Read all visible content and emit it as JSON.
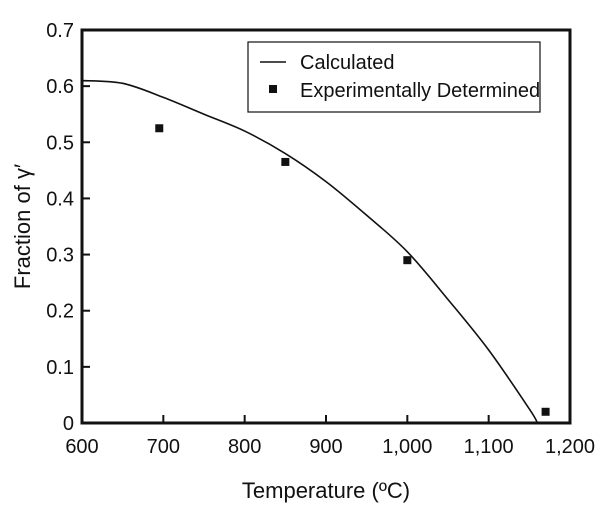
{
  "chart_data": {
    "type": "line",
    "title": "",
    "xlabel": "Temperature (ºC)",
    "ylabel": "Fraction of γ′",
    "xlim": [
      600,
      1200
    ],
    "ylim": [
      0,
      0.7
    ],
    "x_ticks": [
      600,
      700,
      800,
      900,
      1000,
      1100,
      1200
    ],
    "x_tick_labels": [
      "600",
      "700",
      "800",
      "900",
      "1,000",
      "1,100",
      "1,200"
    ],
    "y_ticks": [
      0,
      0.1,
      0.2,
      0.3,
      0.4,
      0.5,
      0.6,
      0.7
    ],
    "y_tick_labels": [
      "0",
      "0.1",
      "0.2",
      "0.3",
      "0.4",
      "0.5",
      "0.6",
      "0.7"
    ],
    "grid": false,
    "legend_position": "top-right",
    "series": [
      {
        "name": "Calculated",
        "style": "line",
        "x": [
          600,
          650,
          700,
          750,
          800,
          850,
          900,
          950,
          1000,
          1050,
          1100,
          1150,
          1160
        ],
        "y": [
          0.61,
          0.605,
          0.58,
          0.55,
          0.52,
          0.48,
          0.43,
          0.37,
          0.305,
          0.22,
          0.13,
          0.025,
          0.0
        ]
      },
      {
        "name": "Experimentally Determined",
        "style": "marker",
        "x": [
          695,
          850,
          1000,
          1170
        ],
        "y": [
          0.525,
          0.465,
          0.29,
          0.02
        ]
      }
    ],
    "colors": {
      "axis": "#111111",
      "line": "#111111",
      "marker": "#111111",
      "background": "#ffffff"
    }
  }
}
